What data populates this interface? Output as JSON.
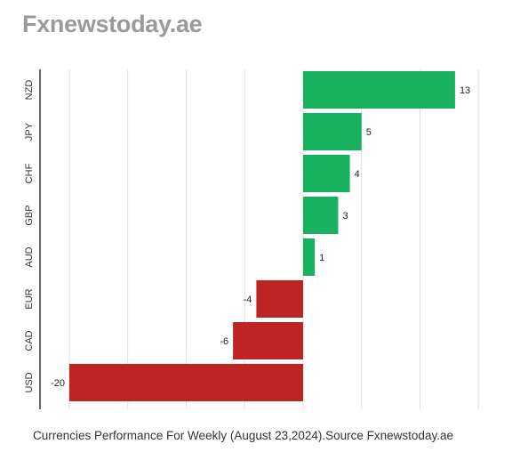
{
  "brand": "Fxnewstoday.ae",
  "caption": "Currencies Performance For Weekly (August 23,2024).Source Fxnewstoday.ae",
  "colors": {
    "positive": "#17b160",
    "negative": "#bf2424",
    "grid": "#e0e0e0",
    "axis": "#333333"
  },
  "chart_data": {
    "type": "bar",
    "orientation": "horizontal",
    "title": "",
    "xlabel": "",
    "ylabel": "",
    "categories": [
      "NZD",
      "JPY",
      "CHF",
      "GBP",
      "AUD",
      "EUR",
      "CAD",
      "USD"
    ],
    "values": [
      13,
      5,
      4,
      3,
      1,
      -4,
      -6,
      -20
    ],
    "xlim": [
      -20,
      15
    ],
    "grid": true,
    "data_labels": true,
    "legend": "none"
  }
}
